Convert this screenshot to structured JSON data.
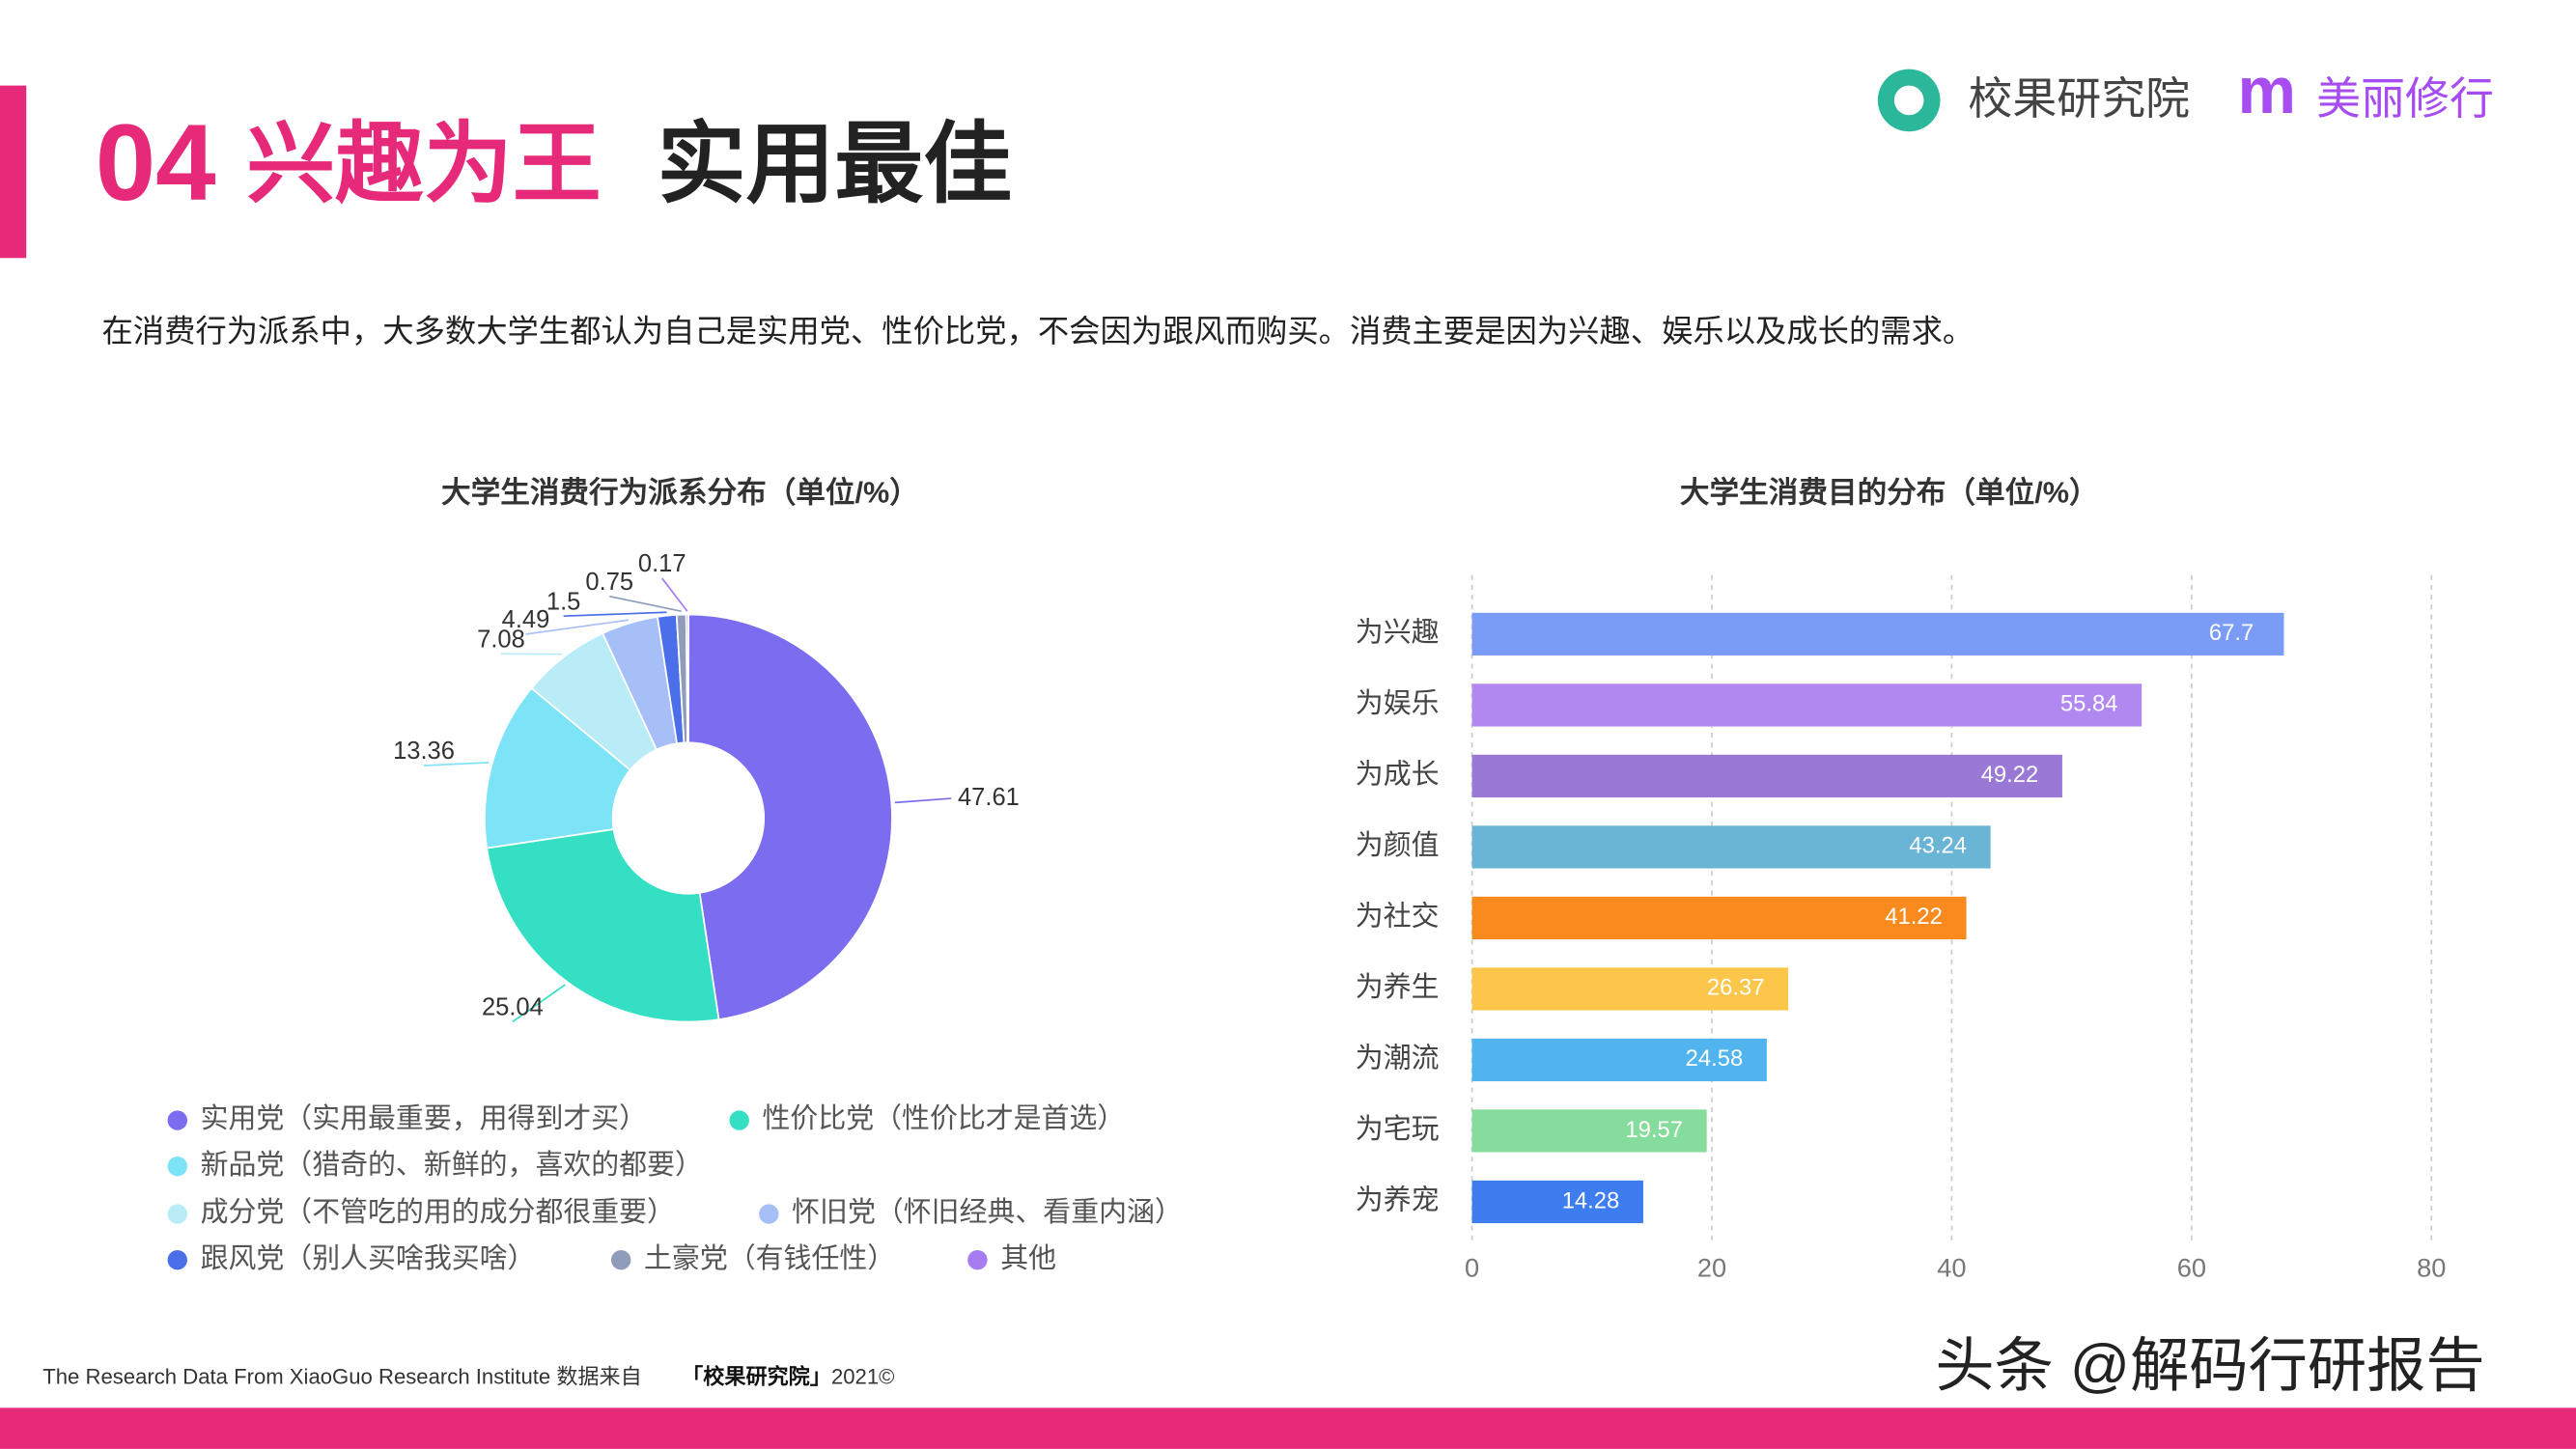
{
  "header": {
    "number": "04",
    "title_highlight": "兴趣为王",
    "title_rest": "实用最佳",
    "logo_name": "校果研究院",
    "logo_m": "m",
    "logo_partner": "美丽修行"
  },
  "description": "在消费行为派系中，大多数大学生都认为自己是实用党、性价比党，不会因为跟风而购买。消费主要是因为兴趣、娱乐以及成长的需求。",
  "chart_data": [
    {
      "type": "pie",
      "title": "大学生消费行为派系分布（单位/%）",
      "categories": [
        "实用党（实用最重要，用得到才买）",
        "性价比党（性价比才是首选）",
        "新品党（猎奇的、新鲜的，喜欢的都要）",
        "成分党（不管吃的用的成分都很重要）",
        "怀旧党（怀旧经典、看重内涵）",
        "跟风党（别人买啥我买啥）",
        "土豪党（有钱任性）",
        "其他"
      ],
      "values": [
        47.61,
        25.04,
        13.36,
        7.08,
        4.49,
        1.5,
        0.75,
        0.17
      ],
      "colors": [
        "#7b6cf0",
        "#34dfc4",
        "#7de3f7",
        "#b9ecf7",
        "#a6c0f7",
        "#4a6fe8",
        "#8f9dbb",
        "#a67cf0"
      ]
    },
    {
      "type": "hbar",
      "title": "大学生消费目的分布（单位/%）",
      "categories": [
        "为兴趣",
        "为娱乐",
        "为成长",
        "为颜值",
        "为社交",
        "为养生",
        "为潮流",
        "为宅玩",
        "为养宠"
      ],
      "values": [
        67.7,
        55.84,
        49.22,
        43.24,
        41.22,
        26.37,
        24.58,
        19.57,
        14.28
      ],
      "colors": [
        "#7a9cf7",
        "#b088f0",
        "#9a78d6",
        "#6ab4d6",
        "#f98b1e",
        "#fbc64a",
        "#52b4ef",
        "#86dc9c",
        "#3e7df0"
      ],
      "xlim": [
        0,
        80
      ],
      "xticks": [
        0,
        20,
        40,
        60,
        80
      ],
      "grid": true
    }
  ],
  "footer": {
    "source": "The Research Data From XiaoGuo Research Institute 数据来自",
    "source_name": "「校果研究院」",
    "source_year": "2021©",
    "credit": "头条 @解码行研报告"
  }
}
